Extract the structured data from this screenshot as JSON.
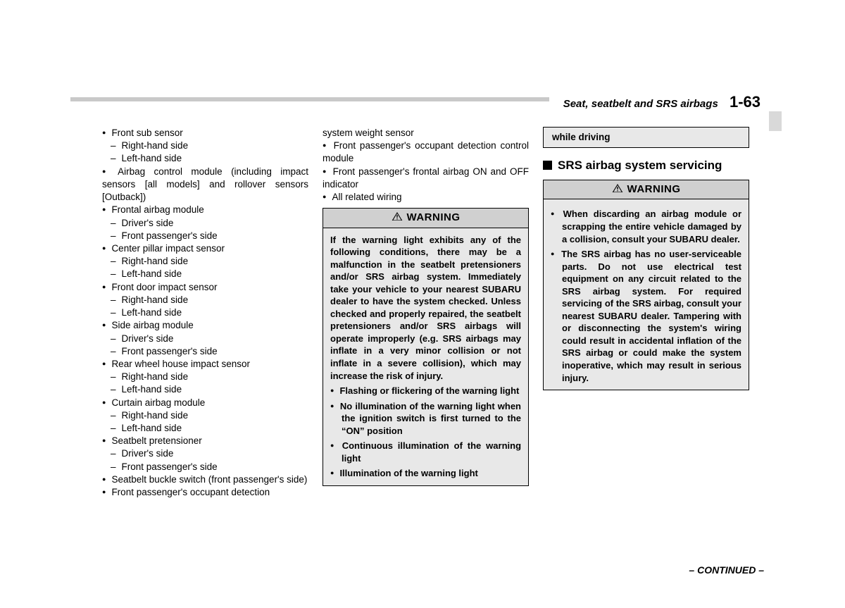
{
  "header": {
    "section": "Seat, seatbelt and SRS airbags",
    "page": "1-63"
  },
  "col1": {
    "items": [
      {
        "type": "main",
        "text": "Front sub sensor"
      },
      {
        "type": "sub",
        "text": "Right-hand side"
      },
      {
        "type": "sub",
        "text": "Left-hand side"
      },
      {
        "type": "main",
        "text": "Airbag control module (including impact sensors [all models] and rollover sensors [Outback])",
        "justify": true
      },
      {
        "type": "main",
        "text": "Frontal airbag module"
      },
      {
        "type": "sub",
        "text": "Driver's side"
      },
      {
        "type": "sub",
        "text": "Front passenger's side"
      },
      {
        "type": "main",
        "text": "Center pillar impact sensor"
      },
      {
        "type": "sub",
        "text": "Right-hand side"
      },
      {
        "type": "sub",
        "text": "Left-hand side"
      },
      {
        "type": "main",
        "text": "Front door impact sensor"
      },
      {
        "type": "sub",
        "text": "Right-hand side"
      },
      {
        "type": "sub",
        "text": "Left-hand side"
      },
      {
        "type": "main",
        "text": "Side airbag module"
      },
      {
        "type": "sub",
        "text": "Driver's side"
      },
      {
        "type": "sub",
        "text": "Front passenger's side"
      },
      {
        "type": "main",
        "text": "Rear wheel house impact sensor"
      },
      {
        "type": "sub",
        "text": "Right-hand side"
      },
      {
        "type": "sub",
        "text": "Left-hand side"
      },
      {
        "type": "main",
        "text": "Curtain airbag module"
      },
      {
        "type": "sub",
        "text": "Right-hand side"
      },
      {
        "type": "sub",
        "text": "Left-hand side"
      },
      {
        "type": "main",
        "text": "Seatbelt pretensioner"
      },
      {
        "type": "sub",
        "text": "Driver's side"
      },
      {
        "type": "sub",
        "text": "Front passenger's side"
      },
      {
        "type": "main",
        "text": "Seatbelt buckle switch (front passenger's side)",
        "justify": true
      },
      {
        "type": "main",
        "text": "Front passenger's occupant detection"
      }
    ]
  },
  "col2": {
    "top_line": "system weight sensor",
    "items": [
      {
        "type": "main",
        "text": "Front passenger's occupant detection control module",
        "justify": true
      },
      {
        "type": "main",
        "text": "Front passenger's frontal airbag ON and OFF indicator",
        "justify": true
      },
      {
        "type": "main",
        "text": "All related wiring"
      }
    ],
    "warning": {
      "title": "WARNING",
      "intro": "If the warning light exhibits any of the following conditions, there may be a malfunction in the seatbelt pretensioners and/or SRS airbag system. Immediately take your vehicle to your nearest SUBARU dealer to have the system checked. Unless checked and properly repaired, the seatbelt pretensioners and/or SRS airbags will operate improperly (e.g. SRS airbags may inflate in a very minor collision or not inflate in a severe collision), which may increase the risk of injury.",
      "bullets": [
        "Flashing or flickering of the warning light",
        "No illumination of the warning light when the ignition switch is first turned to the “ON” position",
        "Continuous illumination of the warning light",
        "Illumination of the warning light"
      ]
    }
  },
  "col3": {
    "cont": "while driving",
    "heading": "SRS airbag system servicing",
    "warning": {
      "title": "WARNING",
      "bullets": [
        "When discarding an airbag module or scrapping the entire vehicle damaged by a collision, consult your SUBARU dealer.",
        "The SRS airbag has no user-serviceable parts. Do not use electrical test equipment on any circuit related to the SRS airbag system. For required servicing of the SRS airbag, consult your nearest SUBARU dealer. Tampering with or disconnecting the system's wiring could result in accidental inflation of the SRS airbag or could make the system inoperative, which may result in serious injury."
      ]
    }
  },
  "continued": "– CONTINUED –"
}
